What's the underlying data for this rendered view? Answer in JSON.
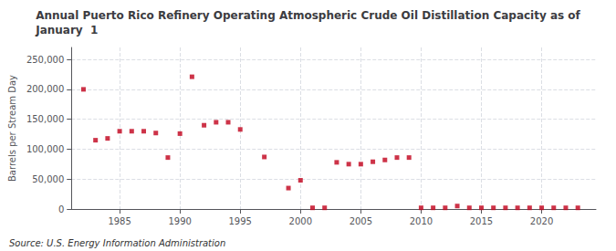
{
  "chart_data": {
    "type": "scatter",
    "title": "Annual Puerto Rico Refinery Operating Atmospheric Crude Oil Distillation Capacity as of\nJanuary  1",
    "ylabel": "Barrels per Stream Day",
    "annotations": [
      "Source: U.S. Energy Information Administration"
    ],
    "x": [
      1982,
      1983,
      1984,
      1985,
      1986,
      1987,
      1988,
      1989,
      1990,
      1991,
      1992,
      1993,
      1994,
      1995,
      1997,
      1999,
      2000,
      2001,
      2002,
      2003,
      2004,
      2005,
      2006,
      2007,
      2008,
      2009,
      2010,
      2011,
      2012,
      2013,
      2014,
      2015,
      2016,
      2017,
      2018,
      2019,
      2020,
      2021,
      2022,
      2023
    ],
    "values": [
      200000,
      115000,
      118000,
      130000,
      130000,
      130000,
      127000,
      86000,
      126000,
      221000,
      140000,
      145000,
      145000,
      133000,
      87000,
      35000,
      48000,
      2000,
      2000,
      78000,
      75000,
      75000,
      79000,
      82000,
      86000,
      86000,
      2000,
      2000,
      2000,
      5000,
      2000,
      2000,
      2000,
      2000,
      2000,
      2000,
      2000,
      2000,
      2000,
      2000
    ],
    "color": "#c0001a",
    "marker": "square",
    "xlim": [
      1981,
      2024.5
    ],
    "xticks": [
      1985,
      1990,
      1995,
      2000,
      2005,
      2010,
      2015,
      2020
    ],
    "ylim": [
      0,
      270000
    ],
    "yticks": [
      0,
      {
        "value": 50000,
        "label": "50,000"
      },
      {
        "value": 100000,
        "label": "100,000"
      },
      {
        "value": 150000,
        "label": "150,000"
      },
      {
        "value": 200000,
        "label": "200,000"
      },
      {
        "value": 250000,
        "label": "250,000"
      }
    ],
    "grid": true
  }
}
